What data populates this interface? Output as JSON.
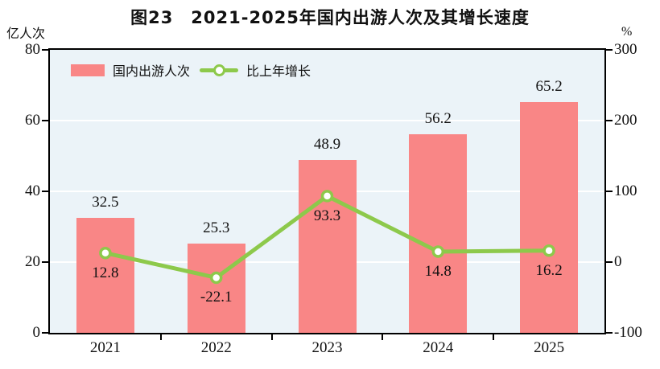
{
  "chart_data": {
    "type": "bar+line",
    "title": "图23　2021-2025年国内出游人次及其增长速度",
    "categories": [
      "2021",
      "2022",
      "2023",
      "2024",
      "2025"
    ],
    "series": [
      {
        "name": "国内出游人次",
        "type": "bar",
        "axis": "left",
        "values": [
          32.5,
          25.3,
          48.9,
          56.2,
          65.2
        ],
        "labels": [
          "32.5",
          "25.3",
          "48.9",
          "56.2",
          "65.2"
        ]
      },
      {
        "name": "比上年增长",
        "type": "line",
        "axis": "right",
        "values": [
          12.8,
          -22.1,
          93.3,
          14.8,
          16.2
        ],
        "labels": [
          "12.8",
          "-22.1",
          "93.3",
          "14.8",
          "16.2"
        ]
      }
    ],
    "left_axis": {
      "unit": "亿人次",
      "min": 0,
      "max": 80,
      "ticks": [
        0,
        20,
        40,
        60,
        80
      ]
    },
    "right_axis": {
      "unit": "%",
      "min": -100,
      "max": 300,
      "ticks": [
        -100,
        0,
        100,
        200,
        300
      ]
    },
    "legend_position": "top-left-inside",
    "grid": "horizontal-white-lines",
    "colors": {
      "bar": "#F98686",
      "line": "#8DC94B",
      "marker_fill": "#FFFFFF",
      "plot_bg": "#EBF3F8",
      "grid": "#FFFFFF",
      "frame": "#000000",
      "text": "#111111"
    }
  }
}
